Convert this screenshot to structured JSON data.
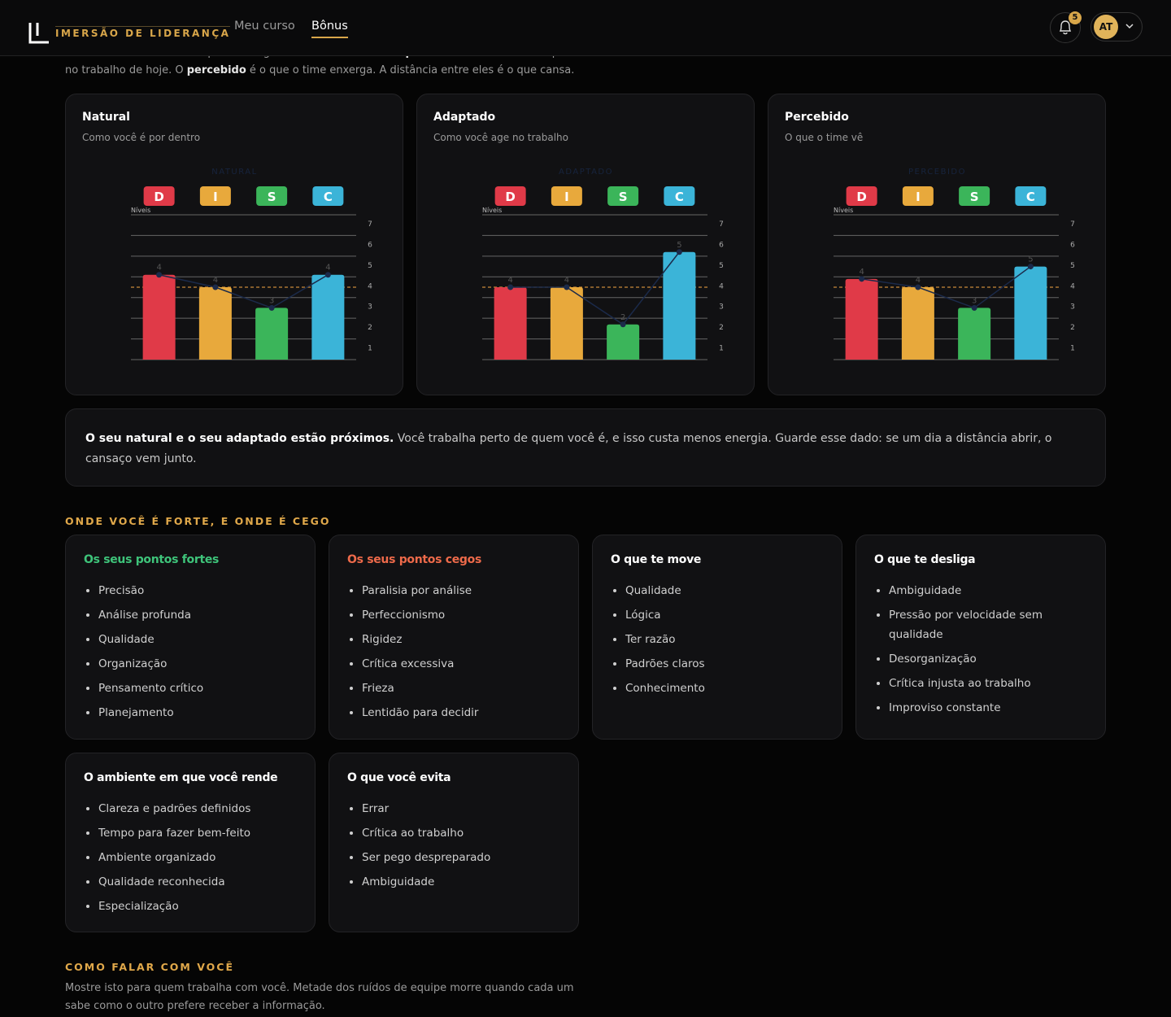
{
  "header": {
    "logo": "IMERSÃO DE LIDERANÇA",
    "nav": [
      "Meu curso",
      "Bônus"
    ],
    "active_nav": 1,
    "notifications": "5",
    "avatar": "AT"
  },
  "intro": [
    [
      {
        "text": "O ",
        "bold": false
      },
      {
        "text": "natural",
        "bold": true
      },
      {
        "text": " é como você é quando ninguém está olhando. O ",
        "bold": false
      },
      {
        "text": "adaptado",
        "bold": true
      },
      {
        "text": " é como você se comporta",
        "bold": false
      }
    ],
    [
      {
        "text": "no trabalho de hoje. O ",
        "bold": false
      },
      {
        "text": "percebido",
        "bold": true
      },
      {
        "text": " é o que o time enxerga. A distância entre eles é o que cansa.",
        "bold": false
      }
    ]
  ],
  "panels": [
    {
      "title": "Natural",
      "subtitle": "Como você é por dentro"
    },
    {
      "title": "Adaptado",
      "subtitle": "Como você age no trabalho"
    },
    {
      "title": "Percebido",
      "subtitle": "O que o time vê"
    }
  ],
  "chart_data": [
    {
      "type": "bar",
      "title": "NATURAL",
      "y_label": "Níveis",
      "categories": [
        "D",
        "I",
        "S",
        "C"
      ],
      "values": [
        4.1,
        3.5,
        2.5,
        4.1
      ],
      "value_labels": [
        "4",
        "4",
        "3",
        "4"
      ],
      "colors": [
        "#e03a48",
        "#e8a93c",
        "#3bb55a",
        "#3bb4d8"
      ],
      "line_color": "#1b2a4a",
      "reference_line": 3.5,
      "reference_color": "#c98a3a",
      "ylim": [
        0,
        7
      ],
      "yticks": [
        1,
        2,
        3,
        4,
        5,
        6,
        7
      ],
      "grid": true
    },
    {
      "type": "bar",
      "title": "ADAPTADO",
      "y_label": "Níveis",
      "categories": [
        "D",
        "I",
        "S",
        "C"
      ],
      "values": [
        3.5,
        3.5,
        1.7,
        5.2
      ],
      "value_labels": [
        "4",
        "4",
        "2",
        "5"
      ],
      "colors": [
        "#e03a48",
        "#e8a93c",
        "#3bb55a",
        "#3bb4d8"
      ],
      "line_color": "#1b2a4a",
      "reference_line": 3.5,
      "reference_color": "#c98a3a",
      "ylim": [
        0,
        7
      ],
      "yticks": [
        1,
        2,
        3,
        4,
        5,
        6,
        7
      ],
      "grid": true
    },
    {
      "type": "bar",
      "title": "PERCEBIDO",
      "y_label": "Níveis",
      "categories": [
        "D",
        "I",
        "S",
        "C"
      ],
      "values": [
        3.9,
        3.5,
        2.5,
        4.5
      ],
      "value_labels": [
        "4",
        "4",
        "3",
        "5"
      ],
      "colors": [
        "#e03a48",
        "#e8a93c",
        "#3bb55a",
        "#3bb4d8"
      ],
      "line_color": "#1b2a4a",
      "reference_line": 3.5,
      "reference_color": "#c98a3a",
      "ylim": [
        0,
        7
      ],
      "yticks": [
        1,
        2,
        3,
        4,
        5,
        6,
        7
      ],
      "grid": true
    }
  ],
  "insight": {
    "bold": "O seu natural e o seu adaptado estão próximos.",
    "text": " Você trabalha perto de quem você é, e isso custa menos energia. Guarde esse dado: se um dia a distância abrir, o cansaço vem junto."
  },
  "strengths": {
    "heading": "ONDE VOCÊ É FORTE, E ONDE É CEGO",
    "cards": [
      {
        "title": "Os seus pontos fortes",
        "color": "#3ec47a",
        "items": [
          "Precisão",
          "Análise profunda",
          "Qualidade",
          "Organização",
          "Pensamento crítico",
          "Planejamento"
        ]
      },
      {
        "title": "Os seus pontos cegos",
        "color": "#ee6a4a",
        "items": [
          "Paralisia por análise",
          "Perfeccionismo",
          "Rigidez",
          "Crítica excessiva",
          "Frieza",
          "Lentidão para decidir"
        ]
      },
      {
        "title": "O que te move",
        "color": "#ffffff",
        "items": [
          "Qualidade",
          "Lógica",
          "Ter razão",
          "Padrões claros",
          "Conhecimento"
        ]
      },
      {
        "title": "O que te desliga",
        "color": "#ffffff",
        "items": [
          "Ambiguidade",
          "Pressão por velocidade sem qualidade",
          "Desorganização",
          "Crítica injusta ao trabalho",
          "Improviso constante"
        ]
      },
      {
        "title": "O ambiente em que você rende",
        "color": "#ffffff",
        "items": [
          "Clareza e padrões definidos",
          "Tempo para fazer bem-feito",
          "Ambiente organizado",
          "Qualidade reconhecida",
          "Especialização"
        ]
      },
      {
        "title": "O que você evita",
        "color": "#ffffff",
        "items": [
          "Errar",
          "Crítica ao trabalho",
          "Ser pego despreparado",
          "Ambiguidade"
        ]
      }
    ]
  },
  "talk": {
    "heading": "COMO FALAR COM VOCÊ",
    "text": "Mostre isto para quem trabalha com você. Metade dos ruídos de equipe morre quando cada um sabe como o outro prefere receber a informação."
  }
}
